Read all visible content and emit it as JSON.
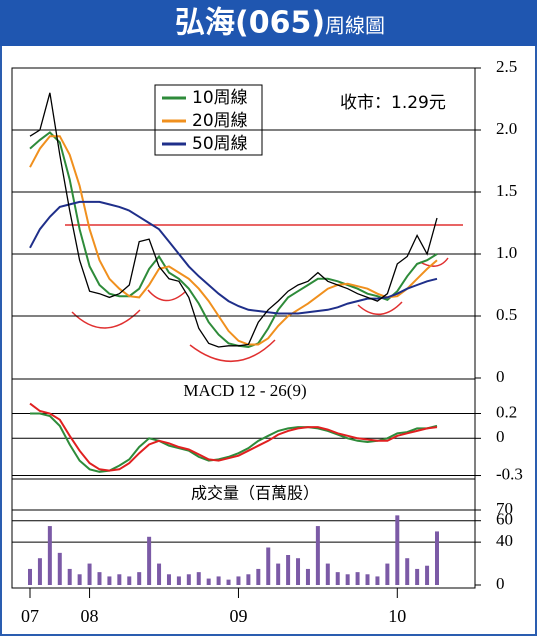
{
  "header": {
    "title": "弘海(065)",
    "subtitle": "周線圖"
  },
  "chart_data": [
    {
      "type": "line",
      "annotation": "收市：1.29元",
      "color": "#000000",
      "values": [
        1.95,
        2.0,
        2.3,
        1.8,
        1.35,
        0.95,
        0.7,
        0.68,
        0.65,
        0.68,
        0.75,
        1.1,
        1.12,
        0.9,
        0.8,
        0.78,
        0.65,
        0.4,
        0.28,
        0.25,
        0.26,
        0.26,
        0.27,
        0.45,
        0.55,
        0.62,
        0.7,
        0.75,
        0.78,
        0.85,
        0.78,
        0.75,
        0.72,
        0.68,
        0.65,
        0.62,
        0.68,
        0.92,
        0.98,
        1.15,
        1.0,
        1.29
      ],
      "series": [
        {
          "name": "10周線",
          "color": "#2e8b3a",
          "values": [
            1.85,
            1.92,
            1.98,
            1.9,
            1.6,
            1.2,
            0.9,
            0.75,
            0.68,
            0.66,
            0.66,
            0.72,
            0.88,
            0.98,
            0.85,
            0.8,
            0.72,
            0.6,
            0.45,
            0.35,
            0.28,
            0.26,
            0.25,
            0.28,
            0.4,
            0.55,
            0.65,
            0.7,
            0.75,
            0.8,
            0.8,
            0.78,
            0.75,
            0.72,
            0.68,
            0.66,
            0.63,
            0.7,
            0.82,
            0.92,
            0.95,
            1.0
          ]
        },
        {
          "name": "20周線",
          "color": "#f0901e",
          "values": [
            1.7,
            1.85,
            1.95,
            1.95,
            1.8,
            1.55,
            1.2,
            0.95,
            0.8,
            0.72,
            0.66,
            0.65,
            0.75,
            0.88,
            0.9,
            0.85,
            0.8,
            0.72,
            0.62,
            0.5,
            0.38,
            0.3,
            0.27,
            0.27,
            0.32,
            0.42,
            0.5,
            0.55,
            0.6,
            0.66,
            0.72,
            0.75,
            0.76,
            0.74,
            0.72,
            0.68,
            0.65,
            0.66,
            0.72,
            0.8,
            0.88,
            0.95
          ]
        },
        {
          "name": "50周線",
          "color": "#1f2f8a",
          "values": [
            1.05,
            1.2,
            1.3,
            1.38,
            1.4,
            1.42,
            1.42,
            1.42,
            1.4,
            1.38,
            1.35,
            1.3,
            1.25,
            1.2,
            1.1,
            1.0,
            0.9,
            0.82,
            0.75,
            0.68,
            0.62,
            0.58,
            0.55,
            0.54,
            0.53,
            0.52,
            0.52,
            0.52,
            0.53,
            0.54,
            0.55,
            0.57,
            0.6,
            0.62,
            0.64,
            0.64,
            0.65,
            0.68,
            0.72,
            0.75,
            0.78,
            0.8
          ]
        }
      ],
      "ylim": [
        0,
        2.5
      ],
      "yticks": [
        0,
        0.5,
        {
          "value": 1,
          "label": "1.0"
        },
        1.5,
        {
          "value": 2,
          "label": "2.0"
        },
        2.5
      ],
      "grid": true
    },
    {
      "type": "line",
      "title": "MACD 12 - 26(9)",
      "series": [
        {
          "color": "#2e8b3a",
          "values": [
            0.2,
            0.2,
            0.18,
            0.1,
            -0.05,
            -0.18,
            -0.25,
            -0.27,
            -0.26,
            -0.22,
            -0.17,
            -0.07,
            0.0,
            -0.02,
            -0.06,
            -0.08,
            -0.1,
            -0.15,
            -0.18,
            -0.17,
            -0.15,
            -0.12,
            -0.08,
            -0.02,
            0.02,
            0.06,
            0.08,
            0.09,
            0.09,
            0.08,
            0.06,
            0.03,
            0.0,
            -0.02,
            -0.03,
            -0.02,
            0.0,
            0.04,
            0.05,
            0.08,
            0.08,
            0.1
          ]
        },
        {
          "color": "#e02020",
          "values": [
            0.28,
            0.22,
            0.2,
            0.15,
            0.02,
            -0.1,
            -0.2,
            -0.25,
            -0.26,
            -0.25,
            -0.2,
            -0.12,
            -0.05,
            -0.02,
            -0.04,
            -0.07,
            -0.09,
            -0.13,
            -0.17,
            -0.18,
            -0.16,
            -0.14,
            -0.1,
            -0.06,
            -0.02,
            0.03,
            0.06,
            0.08,
            0.09,
            0.09,
            0.07,
            0.04,
            0.02,
            0.0,
            -0.01,
            -0.02,
            -0.02,
            0.02,
            0.04,
            0.06,
            0.08,
            0.09
          ]
        }
      ],
      "ylim": [
        -0.32,
        0.47
      ],
      "yticks": [
        0.2,
        0,
        -0.3
      ],
      "grid": true
    },
    {
      "type": "bar",
      "title": "成交量（百萬股）",
      "color": "#7b5aa6",
      "categories": [
        "07",
        null,
        null,
        null,
        null,
        null,
        "08",
        null,
        null,
        null,
        null,
        null,
        null,
        null,
        null,
        null,
        null,
        null,
        null,
        null,
        null,
        "09",
        null,
        null,
        null,
        null,
        null,
        null,
        null,
        null,
        null,
        null,
        null,
        null,
        null,
        null,
        null,
        "10",
        null,
        null,
        null,
        null
      ],
      "values": [
        15,
        25,
        55,
        30,
        15,
        10,
        20,
        12,
        8,
        10,
        8,
        12,
        45,
        20,
        10,
        8,
        10,
        12,
        6,
        8,
        5,
        8,
        10,
        15,
        35,
        20,
        28,
        25,
        15,
        55,
        20,
        12,
        10,
        12,
        10,
        8,
        20,
        65,
        25,
        15,
        18,
        50
      ],
      "ylim": [
        0,
        98
      ],
      "yticks": [
        0,
        40,
        60,
        70
      ],
      "grid": true
    }
  ]
}
